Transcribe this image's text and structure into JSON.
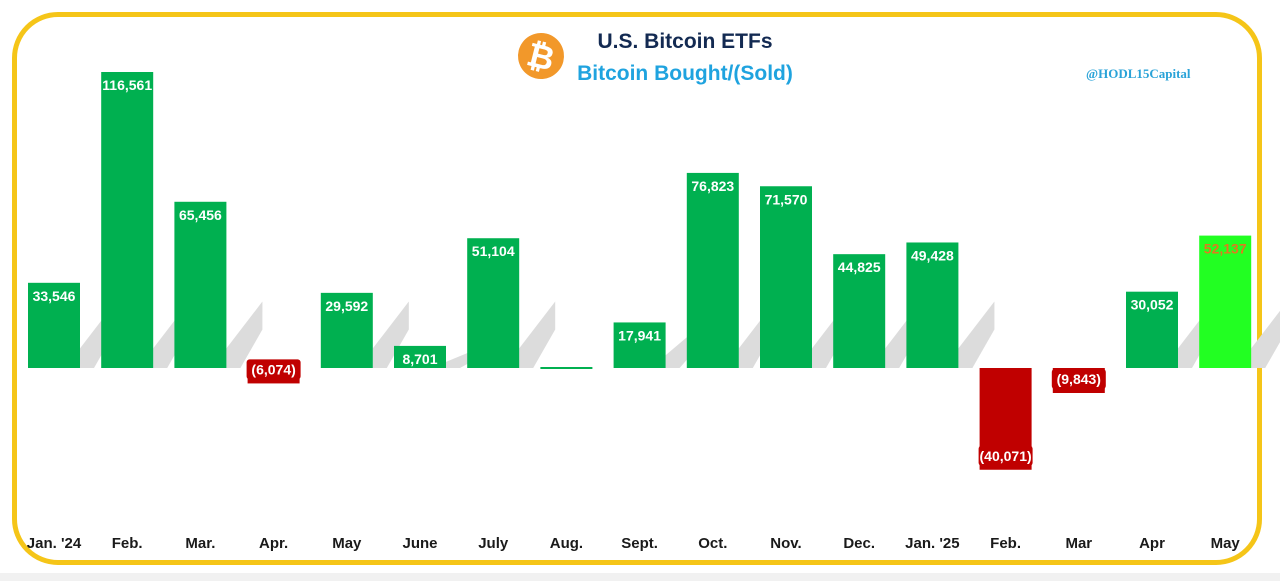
{
  "header": {
    "title": "U.S. Bitcoin ETFs",
    "subtitle": "Bitcoin Bought/(Sold)",
    "handle": "@HODL15Capital",
    "logo_symbol": "₿"
  },
  "colors": {
    "frame": "#f5c518",
    "positive": "#00b050",
    "negative": "#c00000",
    "highlight": "#22ff22",
    "title": "#132a52",
    "subtitle": "#1fa3df",
    "logo": "#f2982a"
  },
  "chart_data": {
    "type": "bar",
    "title": "U.S. Bitcoin ETFs",
    "subtitle": "Bitcoin Bought/(Sold)",
    "categories": [
      "Jan. '24",
      "Feb.",
      "Mar.",
      "Apr.",
      "May",
      "June",
      "July",
      "Aug.",
      "Sept.",
      "Oct.",
      "Nov.",
      "Dec.",
      "Jan. '25",
      "Feb.",
      "Mar",
      "Apr",
      "May"
    ],
    "values": [
      33546,
      116561,
      65456,
      -6074,
      29592,
      8701,
      51104,
      0,
      17941,
      76823,
      71570,
      44825,
      49428,
      -40071,
      -9843,
      30052,
      52137
    ],
    "labels": [
      "33,546",
      "116,561",
      "65,456",
      "(6,074)",
      "29,592",
      "8,701",
      "51,104",
      "",
      "17,941",
      "76,823",
      "71,570",
      "44,825",
      "49,428",
      "(40,071)",
      "(9,843)",
      "30,052",
      "52,137"
    ],
    "highlight_index": 16,
    "grid": false,
    "legend": "none"
  }
}
